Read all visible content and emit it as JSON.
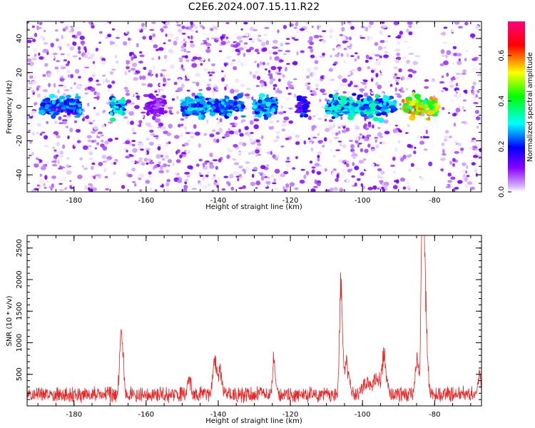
{
  "title": "C2E6.2024.007.15.11.R22",
  "chart_data": [
    {
      "type": "heatmap",
      "xlabel": "Height of straight line (km)",
      "ylabel": "Frequency (Hz)",
      "xlim": [
        -193,
        -67
      ],
      "ylim": [
        -50,
        50
      ],
      "x_ticks": [
        -180,
        -160,
        -140,
        -120,
        -100,
        -80
      ],
      "y_ticks": [
        -40,
        -20,
        0,
        20,
        40
      ],
      "colorbar": {
        "label": "Normalized spectral amplitude",
        "range": [
          0.0,
          0.75
        ],
        "ticks": [
          0.0,
          0.2,
          0.4,
          0.6
        ],
        "colormap": [
          "#ffffff",
          "#d9b8ff",
          "#8a00ff",
          "#0000ff",
          "#00ffff",
          "#00ff00",
          "#ffff00",
          "#ff0000",
          "#ff0080"
        ]
      },
      "column_gaps": [
        [
          -168,
          -166
        ],
        [
          -118,
          -115
        ],
        [
          -110,
          -109
        ],
        [
          -93,
          -91
        ],
        [
          -86,
          -78
        ],
        [
          -71,
          -70
        ]
      ],
      "band_segments": [
        {
          "x": [
            -189,
            -178
          ],
          "amplitude": 0.3
        },
        {
          "x": [
            -170,
            -166
          ],
          "amplitude": 0.38
        },
        {
          "x": [
            -160,
            -155
          ],
          "amplitude": 0.12
        },
        {
          "x": [
            -150,
            -133
          ],
          "amplitude": 0.32
        },
        {
          "x": [
            -130,
            -124
          ],
          "amplitude": 0.32
        },
        {
          "x": [
            -118,
            -115
          ],
          "amplitude": 0.25
        },
        {
          "x": [
            -110,
            -91
          ],
          "amplitude": 0.36
        },
        {
          "x": [
            -89,
            -79
          ],
          "amplitude": 0.62
        }
      ]
    },
    {
      "type": "line",
      "xlabel": "Height of straight line (km)",
      "ylabel": "SNR (10 * v/v)",
      "xlim": [
        -193,
        -67
      ],
      "ylim": [
        0,
        2700
      ],
      "x_ticks": [
        -180,
        -160,
        -140,
        -120,
        -100,
        -80
      ],
      "y_ticks": [
        500,
        1000,
        1500,
        2000,
        2500
      ],
      "line_color": "#ee2222",
      "baseline": 180,
      "noise": 120,
      "peaks": [
        {
          "x": -167,
          "y": 980,
          "width": 0.6
        },
        {
          "x": -166.5,
          "y": 680,
          "width": 0.5
        },
        {
          "x": -148,
          "y": 420,
          "width": 0.7
        },
        {
          "x": -141,
          "y": 780,
          "width": 0.7
        },
        {
          "x": -139.5,
          "y": 600,
          "width": 0.7
        },
        {
          "x": -124.5,
          "y": 800,
          "width": 0.5
        },
        {
          "x": -106,
          "y": 1950,
          "width": 0.55
        },
        {
          "x": -104.5,
          "y": 650,
          "width": 1.2
        },
        {
          "x": -99,
          "y": 420,
          "width": 1.2
        },
        {
          "x": -96,
          "y": 500,
          "width": 1.2
        },
        {
          "x": -94,
          "y": 820,
          "width": 0.8
        },
        {
          "x": -85,
          "y": 750,
          "width": 0.6
        },
        {
          "x": -83.3,
          "y": 2680,
          "width": 0.55
        },
        {
          "x": -82.8,
          "y": 1900,
          "width": 0.9
        },
        {
          "x": -67.5,
          "y": 520,
          "width": 0.6
        }
      ]
    }
  ]
}
